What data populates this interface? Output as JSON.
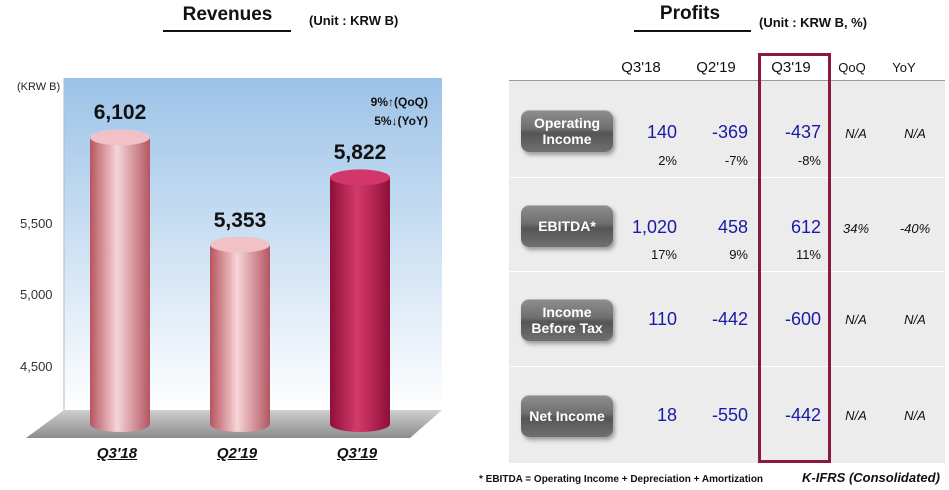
{
  "revenues": {
    "title": "Revenues",
    "unit": "(Unit : KRW B)",
    "axis_unit": "(KRW B)",
    "growth_qoq": "9%↑(QoQ)",
    "growth_yoy": "5%↓(YoY)"
  },
  "chart_data": {
    "type": "bar",
    "title": "Revenues",
    "ylabel": "(KRW B)",
    "categories": [
      "Q3'18",
      "Q2'19",
      "Q3'19"
    ],
    "values": [
      6102,
      5353,
      5822
    ],
    "value_labels": [
      "6,102",
      "5,353",
      "5,822"
    ],
    "yticks": [
      "5,500",
      "5,000",
      "4,500"
    ],
    "ytick_values": [
      5500,
      5000,
      4500
    ],
    "ylim": [
      4100,
      6500
    ],
    "grid": false,
    "colors": {
      "bar_light": "#e9a6ae",
      "bar_dark": "#c2184f",
      "background_top": "#9cc3e8"
    }
  },
  "profits": {
    "title": "Profits",
    "unit": "(Unit : KRW B, %)",
    "columns": [
      "Q3'18",
      "Q2'19",
      "Q3'19",
      "QoQ",
      "YoY"
    ],
    "rows": [
      {
        "label": "Operating Income",
        "label_lines": [
          "Operating",
          "Income"
        ],
        "values": [
          "140",
          "-369",
          "-437"
        ],
        "margins": [
          "2%",
          "-7%",
          "-8%"
        ],
        "qoq": "N/A",
        "yoy": "N/A"
      },
      {
        "label": "EBITDA*",
        "label_lines": [
          "EBITDA*"
        ],
        "values": [
          "1,020",
          "458",
          "612"
        ],
        "margins": [
          "17%",
          "9%",
          "11%"
        ],
        "qoq": "34%",
        "yoy": "-40%"
      },
      {
        "label": "Income Before Tax",
        "label_lines": [
          "Income",
          "Before Tax"
        ],
        "values": [
          "110",
          "-442",
          "-600"
        ],
        "margins": [],
        "qoq": "N/A",
        "yoy": "N/A"
      },
      {
        "label": "Net Income",
        "label_lines": [
          "Net Income"
        ],
        "values": [
          "18",
          "-550",
          "-442"
        ],
        "margins": [],
        "qoq": "N/A",
        "yoy": "N/A"
      }
    ],
    "highlight_color": "#8a1a3c",
    "value_color": "#1a1aa6"
  },
  "footnote": "* EBITDA = Operating Income + Depreciation + Amortization",
  "ifrs_note": "K-IFRS (Consolidated)"
}
